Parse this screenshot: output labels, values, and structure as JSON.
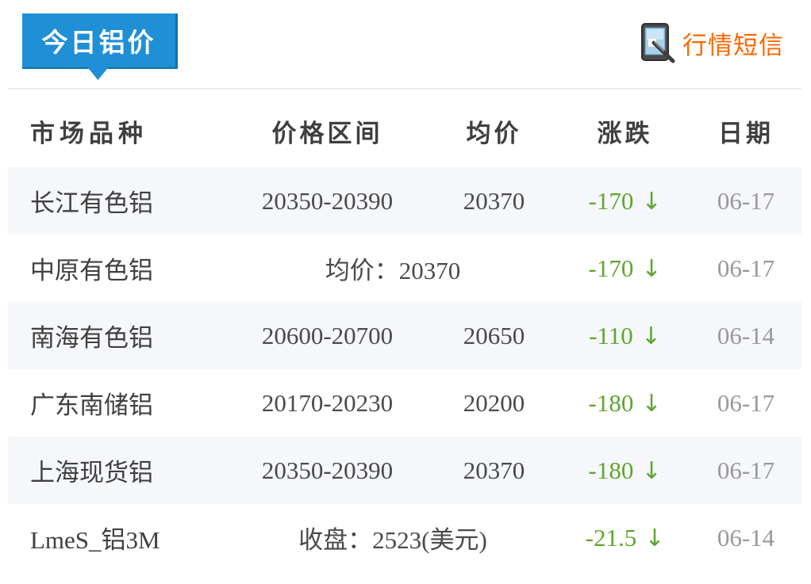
{
  "header": {
    "tab_title": "今日铝价",
    "sms_link_label": "行情短信"
  },
  "colors": {
    "tab_blue": "#1f8fd6",
    "tab_border_blue": "#1172ae",
    "link_orange": "#ff6600",
    "change_green": "#5fa62f",
    "row_stripe": "#f5f7fa",
    "date_gray": "#999999"
  },
  "table": {
    "columns": [
      "市场品种",
      "价格区间",
      "均价",
      "涨跌",
      "日期"
    ],
    "down_arrow": "↓",
    "rows": [
      {
        "market": "长江有色铝",
        "range": "20350-20390",
        "avg": "20370",
        "change": "-170",
        "direction": "down",
        "date": "06-17"
      },
      {
        "market": "中原有色铝",
        "span_text": "均价：20370",
        "change": "-170",
        "direction": "down",
        "date": "06-17"
      },
      {
        "market": "南海有色铝",
        "range": "20600-20700",
        "avg": "20650",
        "change": "-110",
        "direction": "down",
        "date": "06-14"
      },
      {
        "market": "广东南储铝",
        "range": "20170-20230",
        "avg": "20200",
        "change": "-180",
        "direction": "down",
        "date": "06-17"
      },
      {
        "market": "上海现货铝",
        "range": "20350-20390",
        "avg": "20370",
        "change": "-180",
        "direction": "down",
        "date": "06-17"
      },
      {
        "market": "LmeS_铝3M",
        "span_text": "收盘：2523(美元)",
        "change": "-21.5",
        "direction": "down",
        "date": "06-14"
      }
    ]
  }
}
